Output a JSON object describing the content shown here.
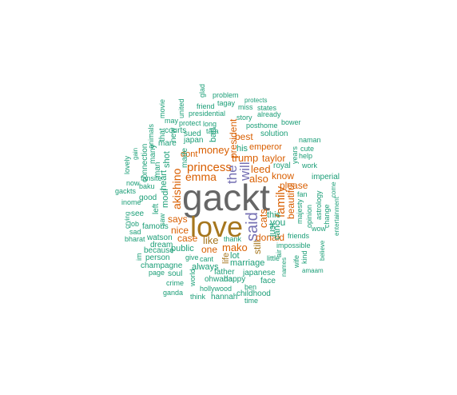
{
  "palette": {
    "green": "#1b9e77",
    "orange": "#d95f02",
    "purple": "#7570b3",
    "olive": "#a6761d",
    "gray": "#666666"
  },
  "words": [
    {
      "text": "gackt",
      "color": "gray"
    },
    {
      "text": "love",
      "color": "olive"
    },
    {
      "text": "said",
      "color": "purple"
    },
    {
      "text": "the",
      "color": "purple"
    },
    {
      "text": "will",
      "color": "purple"
    },
    {
      "text": "princess",
      "color": "orange"
    },
    {
      "text": "emma",
      "color": "orange"
    },
    {
      "text": "money",
      "color": "orange"
    },
    {
      "text": "family",
      "color": "orange"
    },
    {
      "text": "trump",
      "color": "orange"
    },
    {
      "text": "leed",
      "color": "orange"
    },
    {
      "text": "also",
      "color": "orange"
    },
    {
      "text": "cats",
      "color": "orange"
    },
    {
      "text": "know",
      "color": "orange"
    },
    {
      "text": "please",
      "color": "orange"
    },
    {
      "text": "taylor",
      "color": "orange"
    },
    {
      "text": "emperor",
      "color": "orange"
    },
    {
      "text": "best",
      "color": "orange"
    },
    {
      "text": "beautiful",
      "color": "orange"
    },
    {
      "text": "donald",
      "color": "orange"
    },
    {
      "text": "mako",
      "color": "orange"
    },
    {
      "text": "one",
      "color": "orange"
    },
    {
      "text": "like",
      "color": "olive"
    },
    {
      "text": "case",
      "color": "orange"
    },
    {
      "text": "nice",
      "color": "orange"
    },
    {
      "text": "says",
      "color": "orange"
    },
    {
      "text": "akishino",
      "color": "orange"
    },
    {
      "text": "dont",
      "color": "orange"
    },
    {
      "text": "president",
      "color": "orange"
    },
    {
      "text": "his",
      "color": "green"
    },
    {
      "text": "life",
      "color": "olive"
    },
    {
      "text": "you",
      "color": "green"
    },
    {
      "text": "still",
      "color": "olive"
    },
    {
      "text": "just",
      "color": "green"
    },
    {
      "text": "this",
      "color": "green"
    },
    {
      "text": "can",
      "color": "green"
    },
    {
      "text": "lot",
      "color": "green"
    },
    {
      "text": "marriage",
      "color": "green"
    },
    {
      "text": "japanese",
      "color": "green"
    },
    {
      "text": "face",
      "color": "green"
    },
    {
      "text": "public",
      "color": "green"
    },
    {
      "text": "father",
      "color": "green"
    },
    {
      "text": "happy",
      "color": "green"
    },
    {
      "text": "solution",
      "color": "green"
    },
    {
      "text": "royal",
      "color": "green"
    },
    {
      "text": "japan",
      "color": "green"
    },
    {
      "text": "bad",
      "color": "green"
    },
    {
      "text": "made",
      "color": "green"
    },
    {
      "text": "new",
      "color": "green"
    },
    {
      "text": "shot",
      "color": "green"
    },
    {
      "text": "modi",
      "color": "green"
    },
    {
      "text": "heart",
      "color": "green"
    },
    {
      "text": "watson",
      "color": "green"
    },
    {
      "text": "famous",
      "color": "green"
    },
    {
      "text": "see",
      "color": "green"
    },
    {
      "text": "good",
      "color": "green"
    },
    {
      "text": "left",
      "color": "green"
    },
    {
      "text": "inome",
      "color": "green"
    },
    {
      "text": "gackts",
      "color": "green"
    },
    {
      "text": "baku",
      "color": "green"
    },
    {
      "text": "fansite",
      "color": "green"
    },
    {
      "text": "now",
      "color": "green"
    },
    {
      "text": "lovely",
      "color": "green"
    },
    {
      "text": "gain",
      "color": "green"
    },
    {
      "text": "connection",
      "color": "green"
    },
    {
      "text": "man",
      "color": "green"
    },
    {
      "text": "animals",
      "color": "green"
    },
    {
      "text": "many",
      "color": "green"
    },
    {
      "text": "mare",
      "color": "green"
    },
    {
      "text": "that",
      "color": "green"
    },
    {
      "text": "movie",
      "color": "green"
    },
    {
      "text": "courts",
      "color": "green"
    },
    {
      "text": "may",
      "color": "green"
    },
    {
      "text": "sued",
      "color": "green"
    },
    {
      "text": "protect",
      "color": "green"
    },
    {
      "text": "united",
      "color": "green"
    },
    {
      "text": "presidential",
      "color": "green"
    },
    {
      "text": "friend",
      "color": "green"
    },
    {
      "text": "glad",
      "color": "green"
    },
    {
      "text": "problem",
      "color": "green"
    },
    {
      "text": "tagay",
      "color": "green"
    },
    {
      "text": "miss",
      "color": "green"
    },
    {
      "text": "states",
      "color": "green"
    },
    {
      "text": "protects",
      "color": "green"
    },
    {
      "text": "already",
      "color": "green"
    },
    {
      "text": "story",
      "color": "green"
    },
    {
      "text": "posthome",
      "color": "green"
    },
    {
      "text": "bower",
      "color": "green"
    },
    {
      "text": "long",
      "color": "green"
    },
    {
      "text": "tara",
      "color": "green"
    },
    {
      "text": "naman",
      "color": "green"
    },
    {
      "text": "cute",
      "color": "green"
    },
    {
      "text": "years",
      "color": "green"
    },
    {
      "text": "help",
      "color": "green"
    },
    {
      "text": "work",
      "color": "green"
    },
    {
      "text": "imperial",
      "color": "green"
    },
    {
      "text": "fan",
      "color": "green"
    },
    {
      "text": "astrology",
      "color": "green"
    },
    {
      "text": "come",
      "color": "green"
    },
    {
      "text": "entertainment",
      "color": "green"
    },
    {
      "text": "change",
      "color": "green"
    },
    {
      "text": "opinion",
      "color": "green"
    },
    {
      "text": "majesty",
      "color": "green"
    },
    {
      "text": "wow",
      "color": "green"
    },
    {
      "text": "friends",
      "color": "green"
    },
    {
      "text": "impossible",
      "color": "green"
    },
    {
      "text": "believe",
      "color": "green"
    },
    {
      "text": "kind",
      "color": "green"
    },
    {
      "text": "wife",
      "color": "green"
    },
    {
      "text": "little",
      "color": "green"
    },
    {
      "text": "air",
      "color": "green"
    },
    {
      "text": "names",
      "color": "green"
    },
    {
      "text": "amaam",
      "color": "green"
    },
    {
      "text": "thank",
      "color": "green"
    },
    {
      "text": "always",
      "color": "green"
    },
    {
      "text": "give",
      "color": "green"
    },
    {
      "text": "cant",
      "color": "green"
    },
    {
      "text": "ohwada",
      "color": "green"
    },
    {
      "text": "ben",
      "color": "green"
    },
    {
      "text": "childhood",
      "color": "green"
    },
    {
      "text": "time",
      "color": "green"
    },
    {
      "text": "hollywood",
      "color": "green"
    },
    {
      "text": "hannah",
      "color": "green"
    },
    {
      "text": "think",
      "color": "green"
    },
    {
      "text": "world",
      "color": "green"
    },
    {
      "text": "ganda",
      "color": "green"
    },
    {
      "text": "crime",
      "color": "green"
    },
    {
      "text": "soul",
      "color": "green"
    },
    {
      "text": "page",
      "color": "green"
    },
    {
      "text": "champagne",
      "color": "green"
    },
    {
      "text": "person",
      "color": "green"
    },
    {
      "text": "because",
      "color": "green"
    },
    {
      "text": "dream",
      "color": "green"
    },
    {
      "text": "bharat",
      "color": "green"
    },
    {
      "text": "job",
      "color": "green"
    },
    {
      "text": "sad",
      "color": "green"
    },
    {
      "text": "crying",
      "color": "green"
    },
    {
      "text": "im",
      "color": "green"
    },
    {
      "text": "saw",
      "color": "green"
    }
  ]
}
